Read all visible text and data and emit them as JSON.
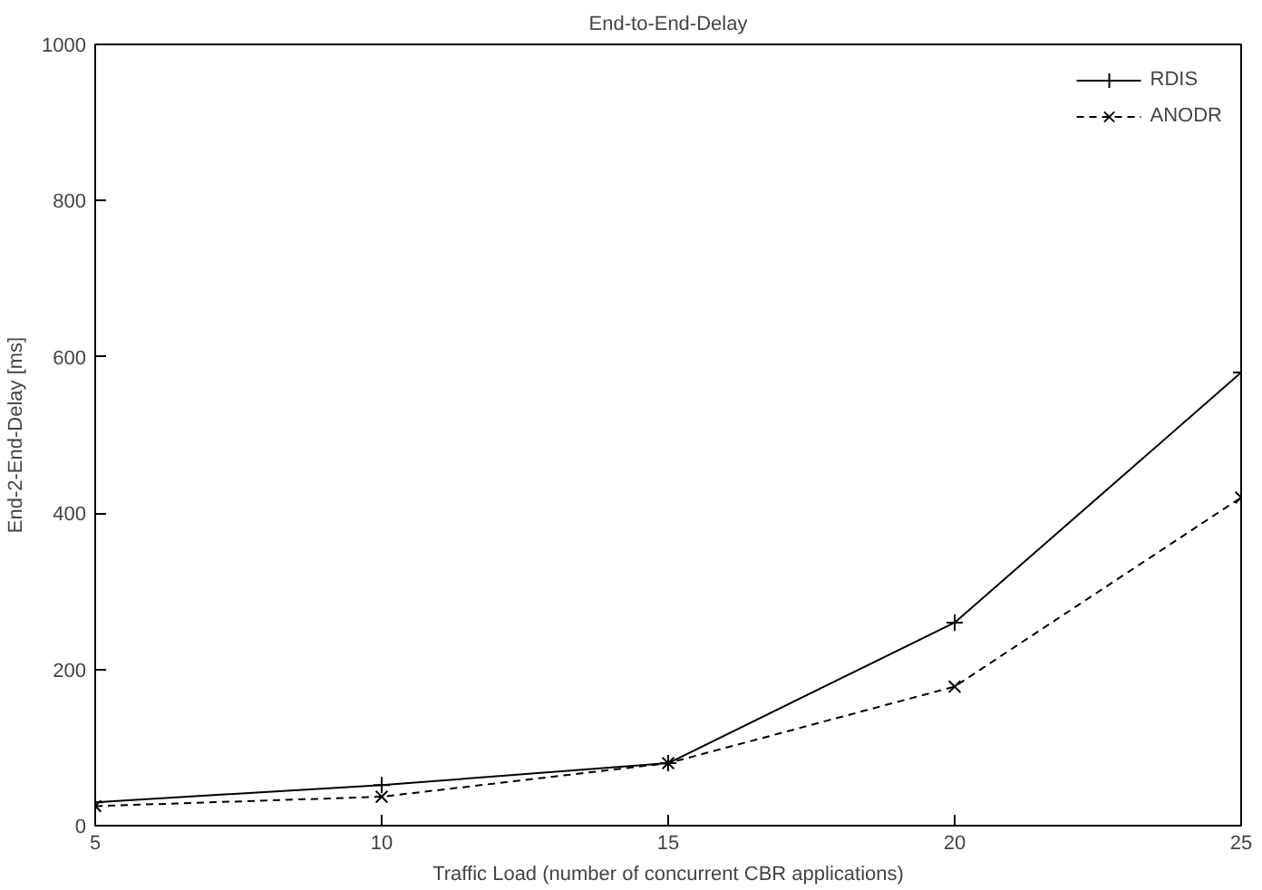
{
  "chart_data": {
    "type": "line",
    "title": "End-to-End-Delay",
    "xlabel": "Traffic Load (number of concurrent CBR applications)",
    "ylabel": "End-2-End-Delay [ms]",
    "x": [
      5,
      10,
      15,
      20,
      25
    ],
    "series": [
      {
        "name": "RDIS",
        "color": "#000000",
        "values": [
          30,
          52,
          80,
          260,
          580
        ],
        "marker": "plus",
        "line_style": "solid"
      },
      {
        "name": "ANODR",
        "color": "#000000",
        "values": [
          25,
          37,
          80,
          178,
          420
        ],
        "marker": "x",
        "line_style": "dashed"
      }
    ],
    "xlim": [
      5,
      25
    ],
    "ylim": [
      0,
      1000
    ],
    "xticks": [
      5,
      10,
      15,
      20,
      25
    ],
    "yticks": [
      0,
      200,
      400,
      600,
      800,
      1000
    ],
    "grid": false,
    "legend": "top right"
  }
}
